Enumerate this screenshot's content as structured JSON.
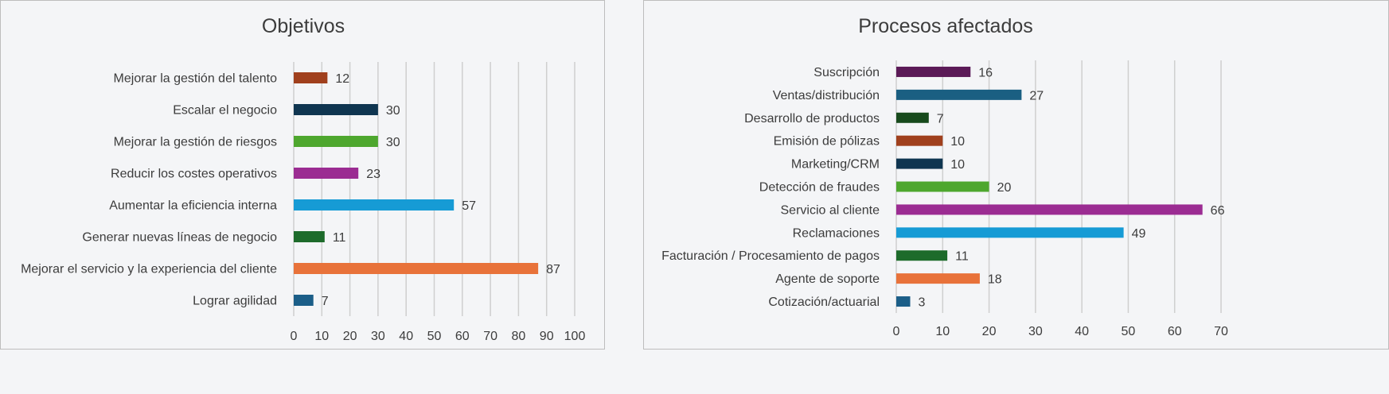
{
  "chart_data": [
    {
      "type": "bar",
      "orientation": "horizontal",
      "title": "Objetivos",
      "categories": [
        "Mejorar la gestión del talento",
        "Escalar el negocio",
        "Mejorar la gestión de riesgos",
        "Reducir los costes operativos",
        "Aumentar la eficiencia interna",
        "Generar nuevas líneas de negocio",
        "Mejorar el servicio y la experiencia del cliente",
        "Lograr agilidad"
      ],
      "values": [
        12,
        30,
        30,
        23,
        57,
        11,
        87,
        7
      ],
      "data_labels": [
        "12",
        "30",
        "30",
        "23",
        "57",
        "11",
        "87",
        "7"
      ],
      "colors": [
        "#a0401d",
        "#0f3550",
        "#4ea72e",
        "#9b2c92",
        "#169bd5",
        "#1d6b2b",
        "#e8723a",
        "#1b5e88"
      ],
      "xlim": [
        0,
        100
      ],
      "xticks": [
        0,
        10,
        20,
        30,
        40,
        50,
        60,
        70,
        80,
        90,
        100
      ],
      "xtick_labels": [
        "0",
        "10",
        "20",
        "30",
        "40",
        "50",
        "60",
        "70",
        "80",
        "90",
        "100"
      ],
      "grid": true,
      "legend": "none"
    },
    {
      "type": "bar",
      "orientation": "horizontal",
      "title": "Procesos afectados",
      "categories": [
        "Suscripción",
        "Ventas/distribución",
        "Desarrollo de productos",
        "Emisión de pólizas",
        "Marketing/CRM",
        "Detección de fraudes",
        "Servicio al cliente",
        "Reclamaciones",
        "Facturación / Procesamiento de pagos",
        "Agente de soporte",
        "Cotización/actuarial"
      ],
      "values": [
        16,
        27,
        7,
        10,
        10,
        20,
        66,
        49,
        11,
        18,
        3
      ],
      "data_labels": [
        "16",
        "27",
        "7",
        "10",
        "10",
        "20",
        "66",
        "49",
        "11",
        "18",
        "3"
      ],
      "colors": [
        "#5b1a57",
        "#1a5f82",
        "#174a1c",
        "#a0401d",
        "#0f3550",
        "#4ea72e",
        "#9b2c92",
        "#169bd5",
        "#1d6b2b",
        "#e8723a",
        "#1b5e88"
      ],
      "xlim": [
        0,
        70
      ],
      "xticks": [
        0,
        10,
        20,
        30,
        40,
        50,
        60,
        70
      ],
      "xtick_labels": [
        "0",
        "10",
        "20",
        "30",
        "40",
        "50",
        "60",
        "70"
      ],
      "grid": true,
      "legend": "none"
    }
  ]
}
